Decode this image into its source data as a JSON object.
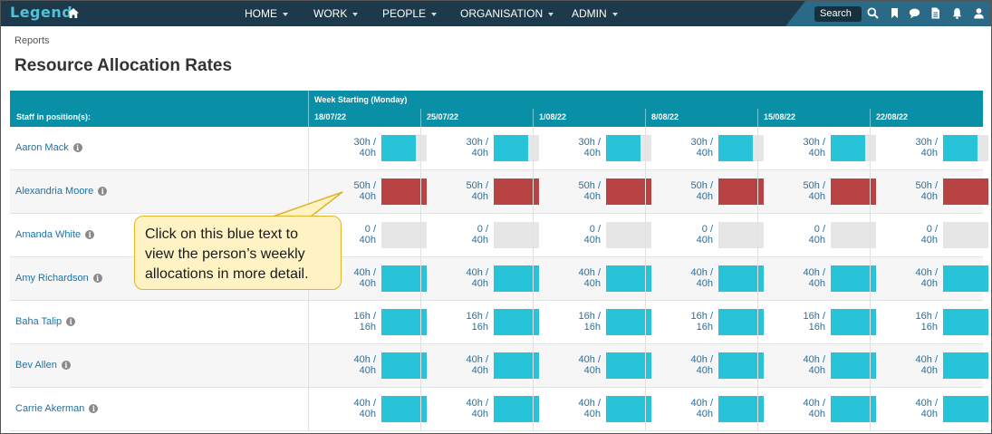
{
  "topbar": {
    "logo": "Legend",
    "nav": [
      {
        "label": "HOME"
      },
      {
        "label": "WORK"
      },
      {
        "label": "PEOPLE"
      },
      {
        "label": "ORGANISATION"
      },
      {
        "label": "ADMIN"
      }
    ],
    "search_label": "Search",
    "icons": [
      "home-icon",
      "search-icon",
      "bookmark-icon",
      "chat-icon",
      "document-icon",
      "bell-icon",
      "user-icon"
    ]
  },
  "breadcrumb": "Reports",
  "page_title": "Resource Allocation Rates",
  "table": {
    "staff_header": "Staff in position(s):",
    "week_header": "Week Starting (Monday)",
    "weeks": [
      "18/07/22",
      "25/07/22",
      "1/08/22",
      "8/08/22",
      "15/08/22",
      "22/08/22"
    ],
    "rows": [
      {
        "name": "Aaron Mack",
        "hours": "30h /",
        "capacity": "40h",
        "fill": 0.75,
        "status": "normal"
      },
      {
        "name": "Alexandria Moore",
        "hours": "50h /",
        "capacity": "40h",
        "fill": 1.0,
        "status": "over"
      },
      {
        "name": "Amanda White",
        "hours": "0 /",
        "capacity": "40h",
        "fill": 0.0,
        "status": "normal"
      },
      {
        "name": "Amy Richardson",
        "hours": "40h /",
        "capacity": "40h",
        "fill": 1.0,
        "status": "normal"
      },
      {
        "name": "Baha Talip",
        "hours": "16h /",
        "capacity": "16h",
        "fill": 1.0,
        "status": "normal"
      },
      {
        "name": "Bev Allen",
        "hours": "40h /",
        "capacity": "40h",
        "fill": 1.0,
        "status": "normal"
      },
      {
        "name": "Carrie Akerman",
        "hours": "40h /",
        "capacity": "40h",
        "fill": 1.0,
        "status": "normal"
      }
    ]
  },
  "callout": {
    "lines": [
      "Click on this blue text to",
      "view the person’s weekly",
      "allocations in more detail."
    ]
  },
  "colors": {
    "nav_bg": "#1c3a4b",
    "header_bg": "#098fa6",
    "bar_normal": "#27c3d9",
    "bar_over": "#b94343",
    "bar_empty": "#e6e6e6",
    "link": "#1d72a8",
    "callout_bg": "#fff3c4",
    "callout_border": "#e2b32c"
  }
}
